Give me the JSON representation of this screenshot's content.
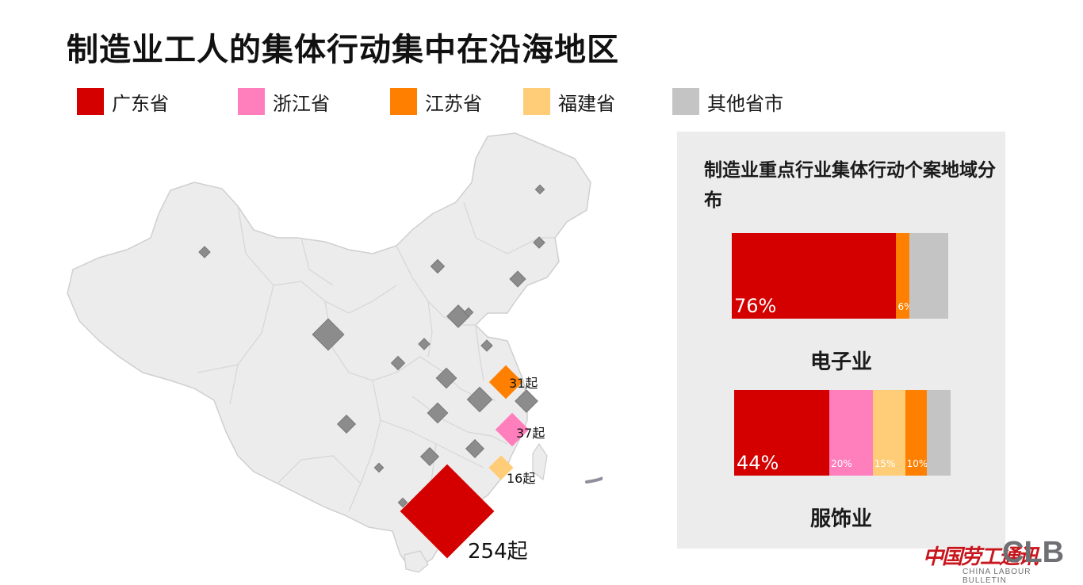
{
  "title": "制造业工人的集体行动集中在沿海地区",
  "colors": {
    "guangdong": "#d40000",
    "zhejiang": "#ff7fbd",
    "jiangsu": "#ff8000",
    "fujian": "#ffcc77",
    "other": "#c4c4c4",
    "map_fill": "#ececec",
    "map_border": "#cfcfcf",
    "marker_grey": "#8c8c8c",
    "arrow": "#8f8e9c",
    "panel_bg": "#ececec"
  },
  "legend": [
    {
      "label": "广东省",
      "color": "#d40000"
    },
    {
      "label": "浙江省",
      "color": "#ff7fbd"
    },
    {
      "label": "江苏省",
      "color": "#ff8000"
    },
    {
      "label": "福建省",
      "color": "#ffcc77"
    },
    {
      "label": "其他省市",
      "color": "#c4c4c4"
    }
  ],
  "map": {
    "highlighted": [
      {
        "province": "广东省",
        "label": "254起",
        "value": 254,
        "color": "#d40000"
      },
      {
        "province": "浙江省",
        "label": "37起",
        "value": 37,
        "color": "#ff7fbd"
      },
      {
        "province": "江苏省",
        "label": "31起",
        "value": 31,
        "color": "#ff8000"
      },
      {
        "province": "福建省",
        "label": "16起",
        "value": 16,
        "color": "#ffcc77"
      }
    ]
  },
  "panel": {
    "title": "制造业重点行业集体行动个案地域分布",
    "charts": [
      {
        "caption": "电子业",
        "segments": [
          {
            "province": "广东省",
            "pct": 76,
            "label": "76%",
            "color": "#d40000"
          },
          {
            "province": "江苏省",
            "pct": 6,
            "label": "6%",
            "color": "#ff8000"
          },
          {
            "province": "其他省市",
            "pct": 18,
            "label": "",
            "color": "#c4c4c4"
          }
        ]
      },
      {
        "caption": "服饰业",
        "segments": [
          {
            "province": "广东省",
            "pct": 44,
            "label": "44%",
            "color": "#d40000"
          },
          {
            "province": "浙江省",
            "pct": 20,
            "label": "20%",
            "color": "#ff7fbd"
          },
          {
            "province": "福建省",
            "pct": 15,
            "label": "15%",
            "color": "#ffcc77"
          },
          {
            "province": "江苏省",
            "pct": 10,
            "label": "10%",
            "color": "#ff8000"
          },
          {
            "province": "其他省市",
            "pct": 11,
            "label": "",
            "color": "#c4c4c4"
          }
        ]
      }
    ]
  },
  "logo": {
    "cn": "中国劳工通讯",
    "en": "CLB",
    "sub": "CHINA LABOUR BULLETIN"
  }
}
